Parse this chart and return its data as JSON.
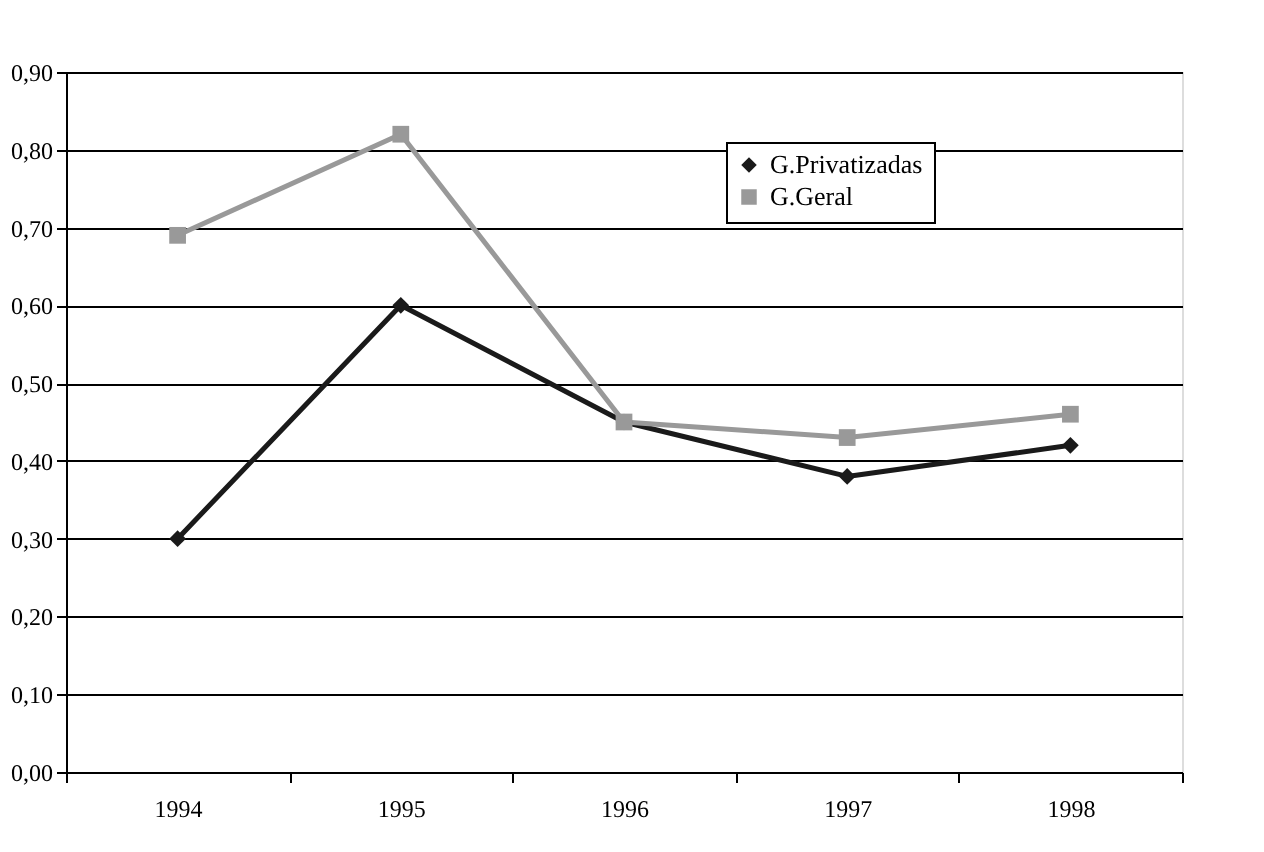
{
  "chart_data": {
    "type": "line",
    "categories": [
      "1994",
      "1995",
      "1996",
      "1997",
      "1998"
    ],
    "series": [
      {
        "name": "G.Privatizadas",
        "color": "#1a1a1a",
        "marker": "diamond",
        "values": [
          0.3,
          0.6,
          0.45,
          0.38,
          0.42
        ]
      },
      {
        "name": "G.Geral",
        "color": "#999999",
        "marker": "square",
        "values": [
          0.69,
          0.82,
          0.45,
          0.43,
          0.46
        ]
      }
    ],
    "ylim": [
      0,
      0.9
    ],
    "yticks": [
      {
        "value": 0,
        "label": "0,00"
      },
      {
        "value": 0.1,
        "label": "0,10"
      },
      {
        "value": 0.2,
        "label": "0,20"
      },
      {
        "value": 0.3,
        "label": "0,30"
      },
      {
        "value": 0.4,
        "label": "0,40"
      },
      {
        "value": 0.5,
        "label": "0,50"
      },
      {
        "value": 0.6,
        "label": "0,60"
      },
      {
        "value": 0.7,
        "label": "0,70"
      },
      {
        "value": 0.8,
        "label": "0,80"
      },
      {
        "value": 0.9,
        "label": "0,90"
      }
    ],
    "grid": "y",
    "legend": "top right",
    "line_style": "solid"
  }
}
